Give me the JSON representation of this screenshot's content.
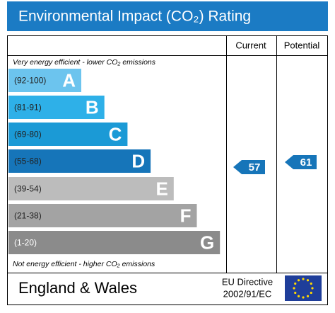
{
  "header": {
    "title": "Environmental Impact (CO₂) Rating"
  },
  "columns": {
    "current": "Current",
    "potential": "Potential"
  },
  "notes": {
    "top": "Very energy efficient - lower CO₂ emissions",
    "bottom": "Not energy efficient - higher CO₂ emissions"
  },
  "bands": [
    {
      "range": "(92-100)",
      "letter": "A",
      "color": "#6cc4ee"
    },
    {
      "range": "(81-91)",
      "letter": "B",
      "color": "#2eb0e8"
    },
    {
      "range": "(69-80)",
      "letter": "C",
      "color": "#1b9ad6"
    },
    {
      "range": "(55-68)",
      "letter": "D",
      "color": "#1675b9"
    },
    {
      "range": "(39-54)",
      "letter": "E",
      "color": "#bcbcbc"
    },
    {
      "range": "(21-38)",
      "letter": "F",
      "color": "#a3a3a3"
    },
    {
      "range": "(1-20)",
      "letter": "G",
      "color": "#8b8b8b"
    }
  ],
  "ratings": {
    "current": "57",
    "potential": "61"
  },
  "footer": {
    "region": "England & Wales",
    "directive_line1": "EU Directive",
    "directive_line2": "2002/91/EC"
  }
}
